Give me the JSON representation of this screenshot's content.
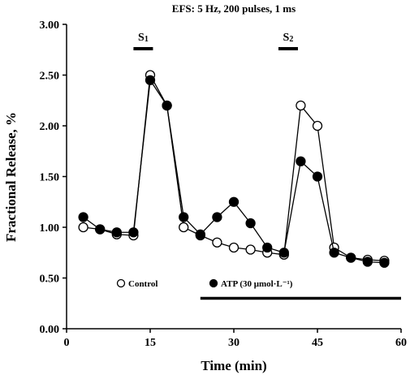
{
  "chart_data": {
    "type": "line",
    "title": "EFS: 5 Hz, 200 pulses, 1 ms",
    "xlabel": "Time (min)",
    "ylabel": "Fractional Release, %",
    "xlim": [
      0,
      60
    ],
    "ylim": [
      0,
      3
    ],
    "xticks": [
      0,
      15,
      30,
      45,
      60
    ],
    "yticks": [
      0,
      0.5,
      1,
      1.5,
      2,
      2.5,
      3
    ],
    "xtick_labels": [
      "0",
      "15",
      "30",
      "45",
      "60"
    ],
    "ytick_labels": [
      "0.00",
      "0.50",
      "1.00",
      "1.50",
      "2.00",
      "2.50",
      "3.00"
    ],
    "grid": false,
    "legend_position": "bottom-center",
    "series": [
      {
        "name": "Control",
        "marker": "open-circle",
        "color": "#000000",
        "x": [
          3,
          6,
          9,
          12,
          15,
          18,
          21,
          24,
          27,
          30,
          33,
          36,
          39,
          42,
          45,
          48,
          51,
          54,
          57
        ],
        "y": [
          1.0,
          0.98,
          0.93,
          0.92,
          2.5,
          2.2,
          1.0,
          0.92,
          0.85,
          0.8,
          0.78,
          0.75,
          0.73,
          2.2,
          2.0,
          0.8,
          0.7,
          0.68,
          0.67
        ]
      },
      {
        "name": "ATP (30 μmol·L⁻¹)",
        "marker": "filled-circle",
        "color": "#000000",
        "x": [
          3,
          6,
          9,
          12,
          15,
          18,
          21,
          24,
          27,
          30,
          33,
          36,
          39,
          42,
          45,
          48,
          51,
          54,
          57
        ],
        "y": [
          1.1,
          0.98,
          0.95,
          0.95,
          2.45,
          2.2,
          1.1,
          0.93,
          1.1,
          1.25,
          1.04,
          0.8,
          0.75,
          1.65,
          1.5,
          0.75,
          0.7,
          0.66,
          0.65
        ]
      }
    ],
    "stimulation_bars": [
      {
        "label": "S1",
        "label_main": "S",
        "label_sub": "1",
        "x_start": 12,
        "x_end": 15.5
      },
      {
        "label": "S2",
        "label_main": "S",
        "label_sub": "2",
        "x_start": 38,
        "x_end": 41.5
      }
    ],
    "treatment_bar": {
      "x_start": 24,
      "x_end": 60,
      "y": 0.3
    }
  }
}
